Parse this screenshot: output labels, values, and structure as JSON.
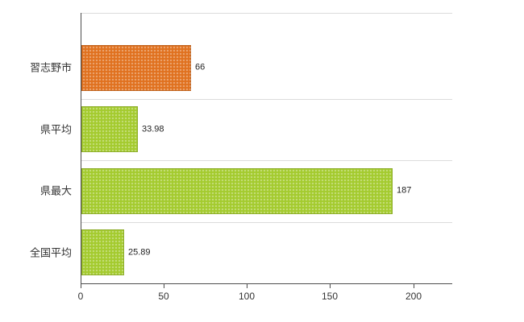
{
  "chart_data": {
    "type": "bar",
    "orientation": "horizontal",
    "title": "",
    "xlabel": "",
    "ylabel": "",
    "categories": [
      "習志野市",
      "県平均",
      "県最大",
      "全国平均"
    ],
    "values": [
      66,
      33.98,
      187,
      25.89
    ],
    "value_labels": [
      "66",
      "33.98",
      "187",
      "25.89"
    ],
    "bar_colors": [
      "#e0711f",
      "#a4cb2e",
      "#a4cb2e",
      "#a4cb2e"
    ],
    "xlim": [
      0,
      223
    ],
    "x_ticks": [
      0,
      50,
      100,
      150,
      200
    ],
    "grid": true,
    "legend": false,
    "colors": {
      "axis": "#4d4d4d",
      "grid": "#dcdcdc",
      "text": "#333333",
      "background": "#ffffff"
    }
  }
}
